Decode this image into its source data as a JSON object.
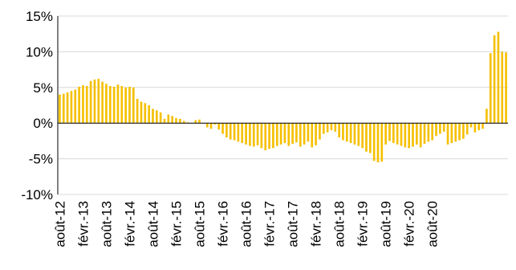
{
  "chart_data": {
    "type": "bar",
    "title": "",
    "xlabel": "",
    "ylabel": "",
    "ylim": [
      -10,
      15
    ],
    "yticks": [
      -10,
      -5,
      0,
      5,
      10,
      15
    ],
    "ytick_labels": [
      "-10%",
      "-5%",
      "0%",
      "5%",
      "10%",
      "15%"
    ],
    "grid": "horizontal",
    "legend": "none",
    "bar_color": "#F5C000",
    "x_tick_labels": [
      "août-12",
      "févr.-13",
      "août-13",
      "févr.-14",
      "août-14",
      "févr.-15",
      "août-15",
      "févr.-16",
      "août-16",
      "févr.-17",
      "août-17",
      "févr.-18",
      "août-18",
      "févr.-19",
      "août-19",
      "févr.-20",
      "août-20"
    ],
    "series": [
      {
        "values": [
          4.0,
          4.1,
          4.3,
          4.5,
          4.7,
          5.1,
          5.3,
          5.2,
          5.9,
          6.1,
          6.2,
          5.8,
          5.5,
          5.2,
          5.1,
          5.4,
          5.2,
          5.0,
          5.1,
          5.0,
          3.4,
          3.0,
          2.8,
          2.5,
          2.0,
          1.8,
          1.5,
          0.6,
          1.2,
          1.0,
          0.7,
          0.6,
          0.3,
          0.1,
          0.0,
          0.4,
          0.5,
          0.0,
          -0.6,
          -0.8,
          -0.2,
          -0.9,
          -1.5,
          -2.0,
          -2.3,
          -2.4,
          -2.6,
          -2.8,
          -3.0,
          -3.2,
          -3.3,
          -3.1,
          -3.5,
          -3.8,
          -3.6,
          -3.5,
          -3.2,
          -3.0,
          -2.8,
          -3.2,
          -2.9,
          -2.7,
          -3.3,
          -3.0,
          -2.6,
          -3.4,
          -3.1,
          -2.3,
          -1.5,
          -1.3,
          -1.0,
          -1.2,
          -2.0,
          -2.4,
          -2.6,
          -2.8,
          -3.0,
          -3.2,
          -3.5,
          -4.0,
          -4.2,
          -5.3,
          -5.5,
          -5.4,
          -3.0,
          -2.5,
          -2.8,
          -3.0,
          -3.2,
          -3.4,
          -3.5,
          -3.3,
          -3.0,
          -3.4,
          -2.9,
          -2.6,
          -2.4,
          -1.8,
          -1.5,
          -1.2,
          -3.0,
          -2.8,
          -2.6,
          -2.4,
          -2.2,
          -1.6,
          -0.6,
          -1.3,
          -1.0,
          -0.8,
          2.0,
          9.8,
          12.3,
          12.8,
          10.0,
          9.9
        ]
      }
    ]
  }
}
